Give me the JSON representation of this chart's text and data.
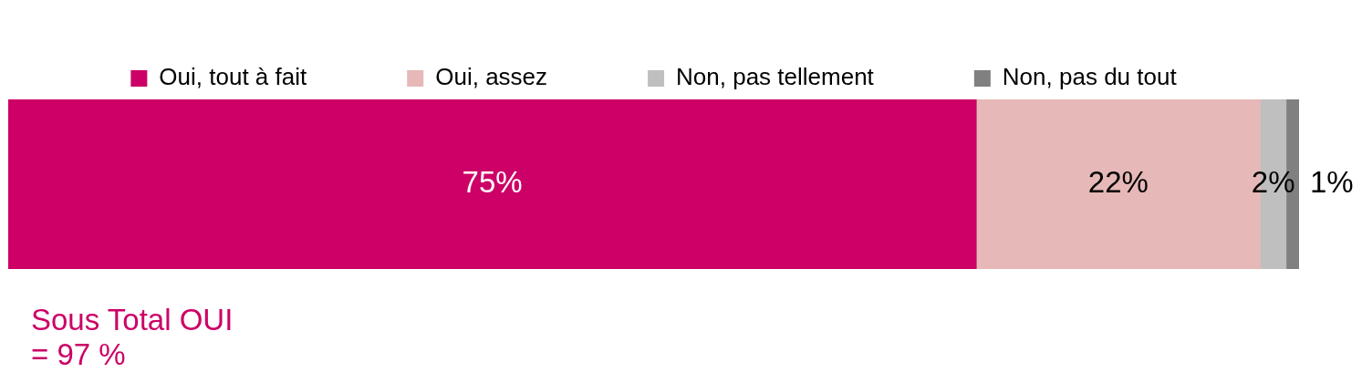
{
  "chart_data": {
    "type": "bar",
    "orientation": "horizontal",
    "stacked": true,
    "categories": [
      null
    ],
    "xlim": [
      0,
      100
    ],
    "legend": "top",
    "tick_labels": false,
    "series": [
      {
        "name": "Oui, tout à fait",
        "color": "#cc0066",
        "values": [
          75
        ],
        "value_labels": [
          "75%"
        ]
      },
      {
        "name": "Oui, assez",
        "color": "#e6b8b7",
        "values": [
          22
        ],
        "value_labels": [
          "22%"
        ]
      },
      {
        "name": "Non, pas tellement",
        "color": "#bfbfbf",
        "values": [
          2
        ],
        "value_labels": [
          "2%"
        ]
      },
      {
        "name": "Non, pas du tout",
        "color": "#808080",
        "values": [
          1
        ],
        "value_labels": [
          "1%"
        ]
      }
    ],
    "annotations": [
      "Sous Total OUI\n= 97 %"
    ]
  }
}
